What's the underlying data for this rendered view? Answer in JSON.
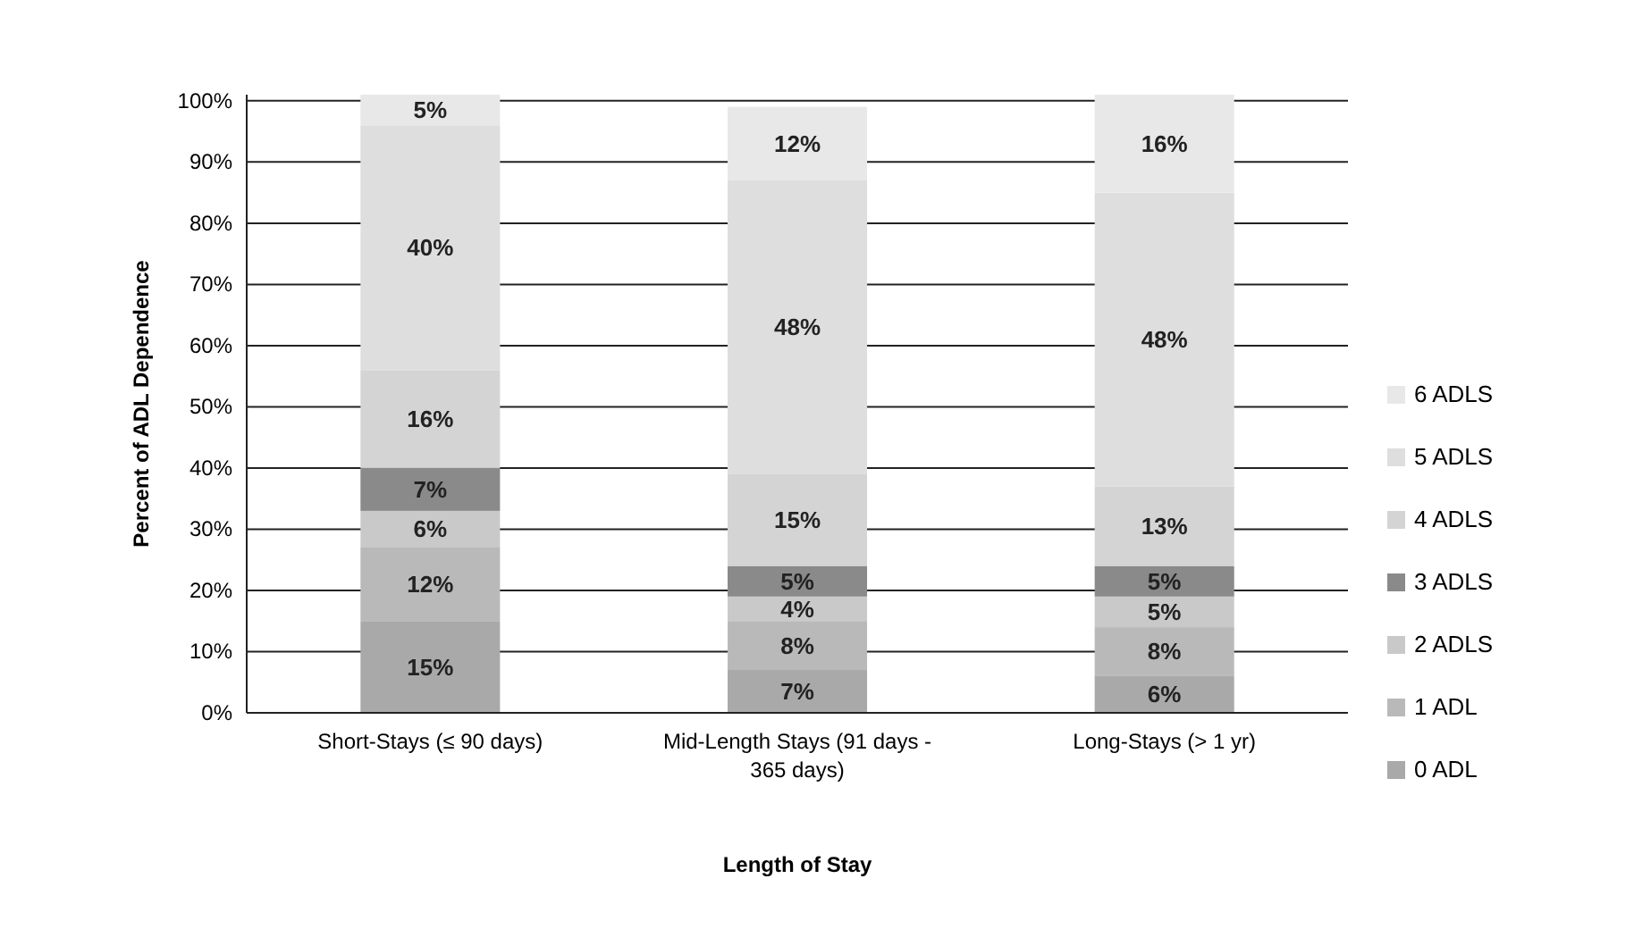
{
  "chart_data": {
    "type": "bar",
    "stacked": true,
    "xlabel": "Length of Stay",
    "ylabel": "Percent of ADL Dependence",
    "categories": [
      "Short-Stays (≤ 90 days)",
      "Mid-Length Stays (91 days - 365 days)",
      "Long-Stays (> 1 yr)"
    ],
    "series": [
      {
        "name": "0 ADL",
        "color": "#a9a9a9",
        "values": [
          15,
          7,
          6
        ],
        "value_labels": [
          "15%",
          "7%",
          "6%"
        ]
      },
      {
        "name": "1 ADL",
        "color": "#b9b9b9",
        "values": [
          12,
          8,
          8
        ],
        "value_labels": [
          "12%",
          "8%",
          "8%"
        ]
      },
      {
        "name": "2 ADLS",
        "color": "#c9c9c9",
        "values": [
          6,
          4,
          5
        ],
        "value_labels": [
          "6%",
          "4%",
          "5%"
        ]
      },
      {
        "name": "3 ADLS",
        "color": "#8a8a8a",
        "values": [
          7,
          5,
          5
        ],
        "value_labels": [
          "7%",
          "5%",
          "5%"
        ]
      },
      {
        "name": "4 ADLS",
        "color": "#d4d4d4",
        "values": [
          16,
          15,
          13
        ],
        "value_labels": [
          "16%",
          "15%",
          "13%"
        ]
      },
      {
        "name": "5 ADLS",
        "color": "#dedede",
        "values": [
          40,
          48,
          48
        ],
        "value_labels": [
          "40%",
          "48%",
          "48%"
        ]
      },
      {
        "name": "6 ADLS",
        "color": "#e8e8e8",
        "values": [
          5,
          12,
          16
        ],
        "value_labels": [
          "5%",
          "12%",
          "16%"
        ]
      }
    ],
    "ylim": [
      0,
      101
    ],
    "yticks": [
      {
        "value": 0,
        "label": "0%"
      },
      {
        "value": 10,
        "label": "10%"
      },
      {
        "value": 20,
        "label": "20%"
      },
      {
        "value": 30,
        "label": "30%"
      },
      {
        "value": 40,
        "label": "40%"
      },
      {
        "value": 50,
        "label": "50%"
      },
      {
        "value": 60,
        "label": "60%"
      },
      {
        "value": 70,
        "label": "70%"
      },
      {
        "value": 80,
        "label": "80%"
      },
      {
        "value": 90,
        "label": "90%"
      },
      {
        "value": 100,
        "label": "100%"
      }
    ],
    "grid": "y",
    "legend": "right"
  }
}
